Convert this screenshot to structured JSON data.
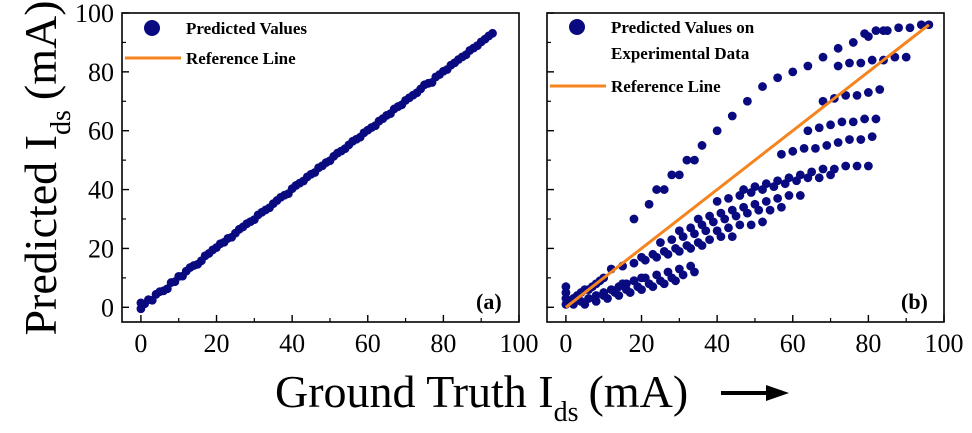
{
  "figure": {
    "ylabel": "Predicted I",
    "ylabel_sub": "ds",
    "ylabel_unit": "(mA)",
    "xlabel": "Ground Truth I",
    "xlabel_sub": "ds",
    "xlabel_unit": "(mA)"
  },
  "colors": {
    "points": "#0a0a80",
    "reference_line": "#f5841f",
    "axes": "#000000"
  },
  "chart_data": [
    {
      "type": "scatter",
      "panel_label": "(a)",
      "xlim": [
        -5,
        100
      ],
      "ylim": [
        -5,
        100
      ],
      "xticks": [
        0,
        20,
        40,
        60,
        80,
        100
      ],
      "yticks": [
        0,
        20,
        40,
        60,
        80,
        100
      ],
      "legend": [
        "Predicted Values",
        "Reference Line"
      ],
      "legend_position": "top-left",
      "grid": false,
      "series": [
        {
          "name": "Predicted Values",
          "kind": "scatter",
          "x": [
            0,
            0,
            1,
            2,
            3,
            4,
            5,
            6,
            7,
            8,
            9,
            10,
            11,
            12,
            13,
            14,
            15,
            16,
            17,
            18,
            19,
            20,
            21,
            22,
            23,
            24,
            25,
            26,
            27,
            28,
            29,
            30,
            31,
            32,
            33,
            34,
            35,
            36,
            37,
            38,
            39,
            40,
            41,
            42,
            43,
            44,
            45,
            46,
            47,
            48,
            49,
            50,
            51,
            52,
            53,
            54,
            55,
            56,
            57,
            58,
            59,
            60,
            61,
            62,
            63,
            64,
            65,
            66,
            67,
            68,
            69,
            70,
            71,
            72,
            73,
            74,
            75,
            76,
            77,
            78,
            79,
            80,
            81,
            82,
            83,
            84,
            85,
            86,
            87,
            88,
            89,
            90,
            91,
            92,
            93
          ],
          "y": [
            -0.5,
            1.5,
            1.2,
            2.6,
            2.4,
            4.4,
            5.3,
            5.6,
            6.3,
            8.4,
            8.7,
            10.5,
            10.6,
            12.3,
            13.5,
            14.2,
            14.6,
            15.8,
            17.5,
            18.3,
            19.5,
            20.3,
            21.6,
            22.1,
            23.4,
            23.8,
            25.2,
            26.5,
            27.3,
            28.4,
            29.1,
            29.8,
            31.4,
            32.3,
            33.1,
            33.8,
            35.2,
            36.3,
            37.4,
            38.1,
            38.6,
            40.3,
            41.4,
            42.2,
            42.9,
            44.3,
            45.2,
            45.8,
            47.4,
            48.1,
            49.2,
            49.8,
            51.3,
            52.4,
            53.1,
            53.9,
            55.2,
            56.4,
            57.1,
            57.8,
            59.3,
            60.2,
            61.1,
            61.7,
            63.3,
            64.1,
            65.2,
            65.8,
            67.4,
            68.2,
            68.8,
            70.3,
            71.2,
            72.1,
            72.9,
            74.2,
            75.6,
            76.1,
            76.4,
            78.3,
            79.1,
            80.2,
            80.8,
            82.3,
            83.1,
            84.2,
            85.1,
            85.8,
            87.3,
            88.1,
            88.9,
            90.2,
            91.1,
            92.2,
            93.1
          ]
        },
        {
          "name": "Reference Line",
          "kind": "line",
          "x": [
            0,
            93
          ],
          "y": [
            0,
            93
          ]
        }
      ]
    },
    {
      "type": "scatter",
      "panel_label": "(b)",
      "xlim": [
        -5,
        100
      ],
      "ylim": [
        -5,
        100
      ],
      "xticks": [
        0,
        20,
        40,
        60,
        80,
        100
      ],
      "yticks": [
        0,
        20,
        40,
        60,
        80,
        100
      ],
      "legend": [
        "Predicted Values on Experimental Data",
        "Reference Line"
      ],
      "legend_position": "top-left",
      "grid": false,
      "series": [
        {
          "name": "Predicted Values on Experimental Data",
          "kind": "scatter",
          "x": [
            0,
            0,
            0,
            0,
            1,
            2,
            3,
            4,
            5,
            6,
            7,
            8,
            9,
            10,
            2,
            4,
            6,
            8,
            10,
            12,
            14,
            16,
            18,
            20,
            5,
            8,
            11,
            14,
            17,
            20,
            23,
            26,
            29,
            10,
            13,
            16,
            19,
            22,
            25,
            28,
            31,
            34,
            15,
            18,
            21,
            24,
            27,
            30,
            33,
            12,
            15,
            18,
            21,
            24,
            27,
            30,
            33,
            36,
            20,
            23,
            26,
            29,
            32,
            35,
            38,
            41,
            44,
            25,
            28,
            31,
            34,
            37,
            40,
            43,
            46,
            49,
            52,
            30,
            33,
            36,
            39,
            42,
            45,
            48,
            51,
            54,
            57,
            35,
            38,
            41,
            44,
            47,
            50,
            53,
            56,
            59,
            62,
            40,
            43,
            46,
            49,
            52,
            55,
            58,
            61,
            64,
            67,
            70,
            47,
            50,
            53,
            56,
            59,
            62,
            65,
            68,
            71,
            74,
            77,
            80,
            57,
            60,
            63,
            66,
            69,
            72,
            75,
            78,
            81,
            64,
            67,
            70,
            73,
            76,
            79,
            82,
            68,
            71,
            74,
            77,
            80,
            83,
            72,
            75,
            78,
            81,
            84,
            87,
            90,
            79,
            82,
            85,
            88,
            91,
            94,
            96,
            18,
            22,
            26,
            30,
            34,
            24,
            28,
            32,
            36,
            40,
            44,
            48,
            52,
            56,
            60,
            64,
            68,
            72,
            76,
            80,
            84
          ],
          "y": [
            1,
            3,
            5,
            7,
            2,
            3,
            4,
            5,
            6,
            6,
            7,
            8,
            9,
            10,
            1,
            2,
            3,
            4,
            5,
            6,
            7,
            8,
            9,
            10,
            1,
            2,
            3,
            4,
            5,
            6,
            7,
            8,
            9,
            4,
            5,
            6,
            7,
            8,
            9,
            10,
            11,
            12,
            8,
            9,
            10,
            11,
            12,
            13,
            14,
            13,
            14,
            15,
            16,
            17,
            18,
            19,
            20,
            21,
            17,
            18,
            19,
            20,
            21,
            22,
            23,
            24,
            24,
            22,
            23,
            24,
            25,
            26,
            26,
            27,
            28,
            28,
            29,
            26,
            27,
            28,
            29,
            30,
            31,
            32,
            33,
            33,
            34,
            30,
            31,
            32,
            33,
            34,
            35,
            36,
            37,
            38,
            38,
            36,
            37,
            38,
            39,
            40,
            41,
            42,
            43,
            44,
            44,
            45,
            40,
            41,
            42,
            43,
            44,
            45,
            46,
            47,
            47,
            48,
            48,
            48,
            52,
            53,
            54,
            54,
            55,
            56,
            57,
            57,
            58,
            60,
            61,
            62,
            63,
            63,
            64,
            64,
            70,
            71,
            72,
            72,
            73,
            74,
            82,
            83,
            83,
            84,
            84,
            85,
            85,
            93,
            94,
            94,
            95,
            95,
            96,
            96,
            30,
            35,
            40,
            45,
            50,
            40,
            45,
            50,
            55,
            60,
            65,
            70,
            75,
            78,
            80,
            82,
            85,
            88,
            90,
            92,
            94
          ]
        },
        {
          "name": "Reference Line",
          "kind": "line",
          "x": [
            0,
            96
          ],
          "y": [
            0,
            96
          ]
        }
      ]
    }
  ]
}
